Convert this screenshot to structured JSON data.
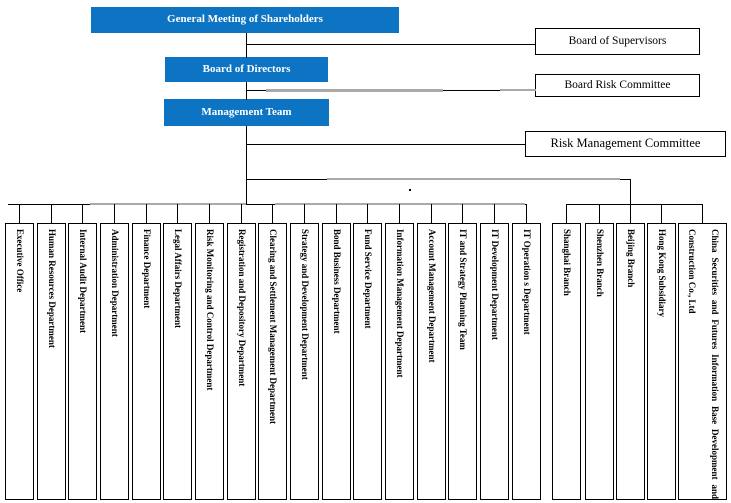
{
  "nodes": {
    "general_meeting": {
      "label": "General Meeting of Shareholders"
    },
    "board_of_directors": {
      "label": "Board of Directors"
    },
    "management_team": {
      "label": "Management Team"
    },
    "board_of_supervisors": {
      "label": "Board of Supervisors"
    },
    "board_risk_committee": {
      "label": "Board Risk Committee"
    },
    "risk_management_committee": {
      "label": "Risk Management Committee"
    }
  },
  "left_departments": [
    "Executive Office",
    "Human Resources Department",
    "Internal Audit Department",
    "Administration Department",
    "Finance Department",
    "Legal Affairs Department",
    "Risk Monitoring and Control Department",
    "Registration and Depository Department",
    "Clearing and Settlement Management Department",
    "Strategy and Development Department",
    "Bond Business Department",
    "Fund Service Department",
    "Information Management Department",
    "Account Management Department",
    "IT and Strategy Planning Team",
    "IT Development Department",
    "IT Operation s Department"
  ],
  "right_branches": [
    "Shanghai Branch",
    "Shenzhen Branch",
    "Beijing Branch",
    "Hong Kong Subsidiary",
    "China Securities and Futures Information Base Development and Construction Co., Ltd"
  ],
  "colors": {
    "node_blue": "#0d74c4",
    "node_blue_text": "#ffffff",
    "line_black": "#000000",
    "line_gray": "#a9a9a9"
  }
}
